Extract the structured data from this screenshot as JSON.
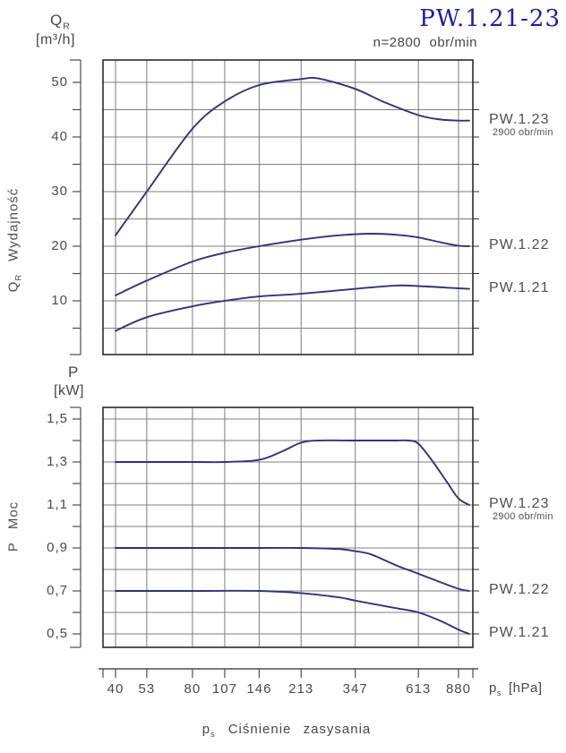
{
  "title": "PW.1.21-23",
  "subtitle": "n=2800  obr/min",
  "colors": {
    "curve": "#32327d",
    "title": "#1c1cb2",
    "grid": "#7d7d7d",
    "frame": "#2b2b2b",
    "axis": "#4d4d4d",
    "text": "#474747"
  },
  "x_axis": {
    "tick_labels": [
      "40",
      "53",
      "80",
      "107",
      "146",
      "213",
      "347",
      "613",
      "880"
    ],
    "tick_values": [
      40,
      53,
      80,
      107,
      146,
      213,
      347,
      613,
      880
    ],
    "unit_sym": "p",
    "unit_sub": "s",
    "unit_bracket": "[hPa]",
    "caption_sym": "p",
    "caption_sub": "s",
    "caption_text": "Ciśnienie zasysania"
  },
  "chart_data": [
    {
      "type": "line",
      "x_scale": "log",
      "title_sym": "Q",
      "title_sub": "R",
      "title_unit": "[m³/h]",
      "side_label_sym": "Q",
      "side_label_sub": "R",
      "side_label_text": "Wydajność",
      "ylabel": "Wydajność Q [m³/h]",
      "ylim": [
        0,
        54
      ],
      "y_tick_labels": [
        "50",
        "40",
        "30",
        "20",
        "10"
      ],
      "y_tick_values": [
        50,
        40,
        30,
        20,
        10
      ],
      "y_grid_values": [
        5,
        10,
        15,
        20,
        25,
        30,
        35,
        40,
        45,
        50
      ],
      "series": [
        {
          "name": "PW.1.23",
          "note": "2900 obr/min",
          "points": [
            [
              40,
              22
            ],
            [
              53,
              30
            ],
            [
              80,
              41.5
            ],
            [
              107,
              46.5
            ],
            [
              146,
              49.5
            ],
            [
              213,
              50.6
            ],
            [
              250,
              50.7
            ],
            [
              347,
              48.8
            ],
            [
              450,
              46.4
            ],
            [
              613,
              44
            ],
            [
              750,
              43.2
            ],
            [
              880,
              43
            ],
            [
              970,
              43
            ]
          ]
        },
        {
          "name": "PW.1.22",
          "points": [
            [
              40,
              11
            ],
            [
              53,
              13.7
            ],
            [
              80,
              17.2
            ],
            [
              107,
              18.8
            ],
            [
              146,
              20
            ],
            [
              213,
              21.2
            ],
            [
              300,
              22
            ],
            [
              400,
              22.3
            ],
            [
              500,
              22.1
            ],
            [
              613,
              21.6
            ],
            [
              750,
              20.7
            ],
            [
              880,
              20.1
            ],
            [
              970,
              20
            ]
          ]
        },
        {
          "name": "PW.1.21",
          "points": [
            [
              40,
              4.5
            ],
            [
              53,
              7
            ],
            [
              80,
              9
            ],
            [
              107,
              10
            ],
            [
              146,
              10.8
            ],
            [
              213,
              11.3
            ],
            [
              347,
              12.2
            ],
            [
              500,
              12.8
            ],
            [
              613,
              12.7
            ],
            [
              880,
              12.3
            ],
            [
              970,
              12.2
            ]
          ]
        }
      ]
    },
    {
      "type": "line",
      "x_scale": "log",
      "title_sym": "P",
      "title_sub": "",
      "title_unit": "[kW]",
      "side_label_sym": "P",
      "side_label_sub": "",
      "side_label_text": "Moc",
      "ylabel": "Moc P [kW]",
      "ylim": [
        0.44,
        1.56
      ],
      "y_tick_labels": [
        "1,5",
        "1,3",
        "1,1",
        "0,9",
        "0,7",
        "0,5"
      ],
      "y_tick_values": [
        1.5,
        1.3,
        1.1,
        0.9,
        0.7,
        0.5
      ],
      "y_grid_values": [
        0.5,
        0.6,
        0.7,
        0.8,
        0.9,
        1.0,
        1.1,
        1.2,
        1.3,
        1.4,
        1.5
      ],
      "series": [
        {
          "name": "PW.1.23",
          "note": "2900 obr/min",
          "points": [
            [
              40,
              1.3
            ],
            [
              80,
              1.3
            ],
            [
              107,
              1.3
            ],
            [
              146,
              1.31
            ],
            [
              180,
              1.35
            ],
            [
              213,
              1.39
            ],
            [
              250,
              1.4
            ],
            [
              347,
              1.4
            ],
            [
              500,
              1.4
            ],
            [
              560,
              1.4
            ],
            [
              613,
              1.385
            ],
            [
              700,
              1.3
            ],
            [
              800,
              1.2
            ],
            [
              880,
              1.13
            ],
            [
              970,
              1.1
            ]
          ]
        },
        {
          "name": "PW.1.22",
          "points": [
            [
              40,
              0.9
            ],
            [
              80,
              0.9
            ],
            [
              146,
              0.9
            ],
            [
              213,
              0.9
            ],
            [
              300,
              0.895
            ],
            [
              347,
              0.885
            ],
            [
              400,
              0.87
            ],
            [
              500,
              0.82
            ],
            [
              613,
              0.78
            ],
            [
              750,
              0.74
            ],
            [
              880,
              0.71
            ],
            [
              970,
              0.7
            ]
          ]
        },
        {
          "name": "PW.1.21",
          "points": [
            [
              40,
              0.7
            ],
            [
              80,
              0.7
            ],
            [
              146,
              0.7
            ],
            [
              213,
              0.69
            ],
            [
              300,
              0.67
            ],
            [
              347,
              0.655
            ],
            [
              500,
              0.62
            ],
            [
              613,
              0.6
            ],
            [
              750,
              0.56
            ],
            [
              880,
              0.52
            ],
            [
              970,
              0.5
            ]
          ]
        }
      ]
    }
  ]
}
